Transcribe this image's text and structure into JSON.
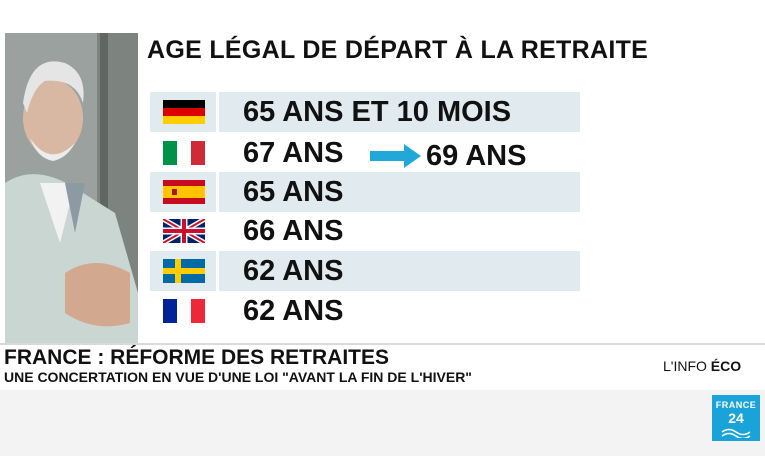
{
  "title": "AGE LÉGAL DE DÉPART À LA RETRAITE",
  "countries": [
    {
      "flag": "germany-flag",
      "value": "65 ANS ET 10 MOIS"
    },
    {
      "flag": "italy-flag",
      "value": "67 ANS",
      "arrow_to": "69 ANS"
    },
    {
      "flag": "spain-flag",
      "value": "65 ANS"
    },
    {
      "flag": "uk-flag",
      "value": "66 ANS"
    },
    {
      "flag": "sweden-flag",
      "value": "62 ANS"
    },
    {
      "flag": "france-flag",
      "value": "62 ANS"
    }
  ],
  "lower_third": {
    "headline": "FRANCE : RÉFORME DES RETRAITES",
    "subline": "UNE CONCERTATION EN VUE D'UNE LOI \"AVANT LA FIN DE L'HIVER\""
  },
  "program": {
    "prefix": "L'INFO ",
    "name": "ÉCO"
  },
  "logo": {
    "line1": "FRANCE",
    "line2": "24"
  },
  "colors": {
    "row_shade": "#e1ebef",
    "arrow": "#22a8d8",
    "logo_bg": "#1aa3d9"
  }
}
